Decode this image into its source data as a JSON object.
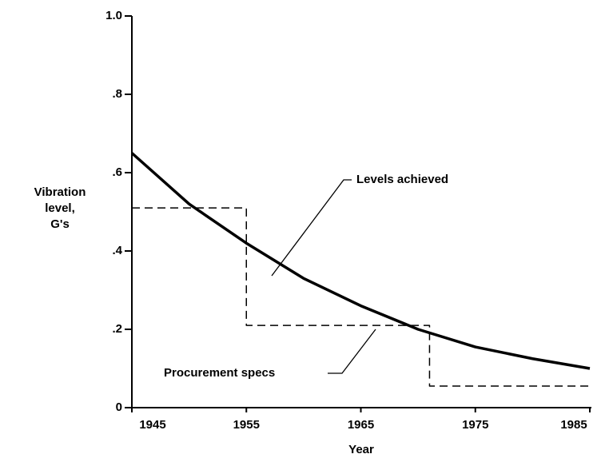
{
  "chart_data": {
    "type": "line",
    "ylabel": [
      "Vibration",
      "level,",
      "G's"
    ],
    "xlabel": "Year",
    "xlim": [
      1945,
      1985
    ],
    "xticks": [
      1945,
      1955,
      1965,
      1975,
      1985
    ],
    "ylim": [
      0,
      1.0
    ],
    "yticks": [
      0,
      {
        "value": 0.2,
        "label": ".2"
      },
      {
        "value": 0.4,
        "label": ".4"
      },
      {
        "value": 0.6,
        "label": ".6"
      },
      {
        "value": 0.8,
        "label": ".8"
      },
      {
        "value": 1.0,
        "label": "1.0"
      }
    ],
    "grid": false,
    "series": [
      {
        "name": "Levels achieved",
        "color": "#000000",
        "dash": false,
        "x": [
          1945,
          1950,
          1955,
          1960,
          1965,
          1970,
          1975,
          1980,
          1985
        ],
        "values": [
          0.65,
          0.52,
          0.42,
          0.33,
          0.26,
          0.2,
          0.155,
          0.125,
          0.1
        ]
      },
      {
        "name": "Procurement specs",
        "color": "#000000",
        "dash": true,
        "x": [
          1945,
          1955,
          1955,
          1971,
          1971,
          1985
        ],
        "values": [
          0.51,
          0.51,
          0.21,
          0.21,
          0.055,
          0.055
        ]
      }
    ]
  }
}
